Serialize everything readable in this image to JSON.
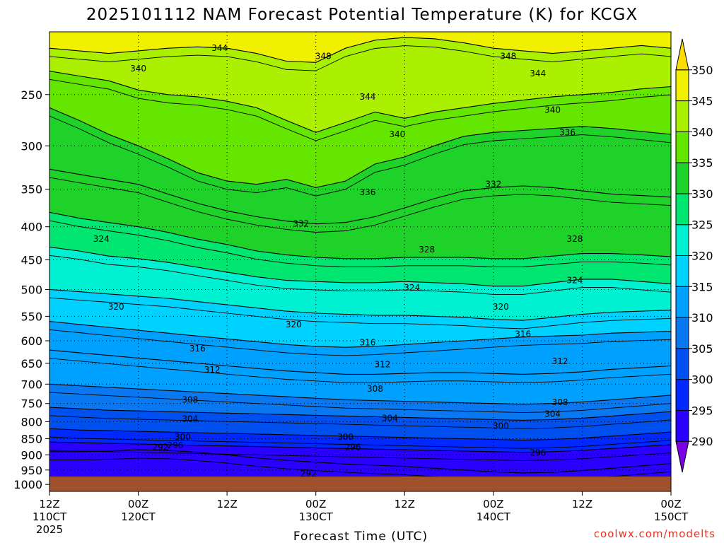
{
  "chart_data": {
    "type": "heatmap",
    "title": "2025101112 NAM Forecast Potential Temperature (K) for KCGX",
    "xlabel": "Forecast Time (UTC)",
    "ylabel": "",
    "x_ticks": [
      {
        "hour": 0,
        "time": "12Z",
        "date": "110CT",
        "year": "2025"
      },
      {
        "hour": 12,
        "time": "00Z",
        "date": "120CT",
        "year": ""
      },
      {
        "hour": 24,
        "time": "12Z",
        "date": "",
        "year": ""
      },
      {
        "hour": 36,
        "time": "00Z",
        "date": "130CT",
        "year": ""
      },
      {
        "hour": 48,
        "time": "12Z",
        "date": "",
        "year": ""
      },
      {
        "hour": 60,
        "time": "00Z",
        "date": "140CT",
        "year": ""
      },
      {
        "hour": 72,
        "time": "12Z",
        "date": "",
        "year": ""
      },
      {
        "hour": 84,
        "time": "00Z",
        "date": "150CT",
        "year": ""
      }
    ],
    "x_range_hours": [
      0,
      84
    ],
    "y_ticks": [
      "250",
      "300",
      "350",
      "400",
      "450",
      "500",
      "550",
      "600",
      "650",
      "700",
      "750",
      "800",
      "850",
      "900",
      "950",
      "1000"
    ],
    "y_range_hpa": [
      200,
      1025
    ],
    "colorbar": {
      "levels": [
        "290",
        "295",
        "300",
        "305",
        "310",
        "315",
        "320",
        "325",
        "330",
        "335",
        "340",
        "345",
        "350"
      ],
      "colors": [
        "#7a00e6",
        "#2a00ff",
        "#0028ff",
        "#0050f0",
        "#0a78f0",
        "#00a0ff",
        "#00d2ff",
        "#00f0d2",
        "#00e670",
        "#1ed22a",
        "#64e600",
        "#aaf000",
        "#f0f000",
        "#ffdc00"
      ]
    },
    "isotherm_bands": [
      {
        "theta": 344,
        "pressure": [
          212,
          214,
          216,
          214,
          212,
          211,
          212,
          216,
          222,
          223,
          212,
          206,
          204,
          205,
          208,
          212,
          214,
          216,
          214,
          212,
          210,
          212
        ]
      },
      {
        "theta": 340,
        "pressure": [
          230,
          234,
          238,
          246,
          250,
          252,
          256,
          262,
          274,
          286,
          276,
          266,
          272,
          266,
          262,
          258,
          255,
          252,
          250,
          248,
          245,
          243
        ]
      },
      {
        "theta": 336,
        "pressure": [
          262,
          274,
          288,
          300,
          314,
          330,
          340,
          344,
          338,
          348,
          340,
          320,
          312,
          300,
          290,
          286,
          284,
          282,
          280,
          282,
          285,
          288
        ]
      },
      {
        "theta": 332,
        "pressure": [
          326,
          332,
          338,
          344,
          356,
          368,
          378,
          386,
          392,
          396,
          394,
          386,
          374,
          362,
          352,
          348,
          346,
          348,
          352,
          356,
          358,
          360
        ]
      },
      {
        "theta": 328,
        "pressure": [
          380,
          388,
          394,
          400,
          408,
          418,
          426,
          436,
          442,
          446,
          448,
          448,
          446,
          446,
          446,
          448,
          448,
          444,
          440,
          440,
          442,
          445
        ]
      },
      {
        "theta": 324,
        "pressure": [
          430,
          436,
          444,
          448,
          454,
          462,
          470,
          478,
          484,
          486,
          488,
          488,
          486,
          488,
          490,
          494,
          494,
          488,
          482,
          482,
          486,
          490
        ]
      },
      {
        "theta": 320,
        "pressure": [
          500,
          504,
          508,
          512,
          516,
          522,
          528,
          534,
          540,
          544,
          546,
          548,
          548,
          550,
          552,
          556,
          558,
          552,
          546,
          542,
          540,
          538
        ]
      },
      {
        "theta": 316,
        "pressure": [
          560,
          566,
          572,
          578,
          584,
          590,
          596,
          602,
          608,
          612,
          614,
          612,
          608,
          604,
          600,
          596,
          592,
          590,
          588,
          584,
          582,
          580
        ]
      },
      {
        "theta": 312,
        "pressure": [
          620,
          626,
          632,
          638,
          644,
          650,
          656,
          662,
          668,
          672,
          676,
          676,
          674,
          672,
          672,
          674,
          676,
          674,
          670,
          664,
          660,
          656
        ]
      },
      {
        "theta": 308,
        "pressure": [
          700,
          704,
          708,
          712,
          716,
          720,
          724,
          728,
          732,
          736,
          740,
          742,
          744,
          746,
          748,
          750,
          752,
          750,
          746,
          740,
          734,
          728
        ]
      },
      {
        "theta": 304,
        "pressure": [
          760,
          764,
          768,
          770,
          772,
          774,
          776,
          778,
          780,
          782,
          784,
          786,
          788,
          790,
          792,
          794,
          796,
          794,
          790,
          784,
          778,
          772
        ]
      },
      {
        "theta": 300,
        "pressure": [
          820,
          824,
          826,
          828,
          830,
          832,
          834,
          836,
          838,
          840,
          842,
          844,
          846,
          848,
          850,
          852,
          854,
          852,
          848,
          842,
          836,
          830
        ]
      },
      {
        "theta": 296,
        "pressure": [
          860,
          862,
          864,
          866,
          868,
          870,
          872,
          874,
          876,
          878,
          880,
          882,
          884,
          886,
          888,
          890,
          892,
          890,
          886,
          880,
          874,
          868
        ]
      },
      {
        "theta": 292,
        "pressure": [
          890,
          890,
          888,
          884,
          886,
          892,
          900,
          910,
          918,
          924,
          930,
          934,
          938,
          944,
          950,
          956,
          960,
          958,
          952,
          944,
          936,
          928
        ]
      }
    ],
    "contour_labels": [
      {
        "text": "344",
        "hour": 23,
        "p": 212
      },
      {
        "text": "348",
        "hour": 37,
        "p": 218
      },
      {
        "text": "348",
        "hour": 62,
        "p": 218
      },
      {
        "text": "340",
        "hour": 12,
        "p": 228
      },
      {
        "text": "344",
        "hour": 66,
        "p": 232
      },
      {
        "text": "344",
        "hour": 43,
        "p": 252
      },
      {
        "text": "340",
        "hour": 68,
        "p": 264
      },
      {
        "text": "340",
        "hour": 47,
        "p": 288
      },
      {
        "text": "336",
        "hour": 70,
        "p": 286
      },
      {
        "text": "332",
        "hour": 60,
        "p": 344
      },
      {
        "text": "336",
        "hour": 43,
        "p": 354
      },
      {
        "text": "332",
        "hour": 34,
        "p": 396
      },
      {
        "text": "324",
        "hour": 7,
        "p": 418
      },
      {
        "text": "328",
        "hour": 71,
        "p": 418
      },
      {
        "text": "328",
        "hour": 51,
        "p": 434
      },
      {
        "text": "324",
        "hour": 71,
        "p": 484
      },
      {
        "text": "324",
        "hour": 49,
        "p": 497
      },
      {
        "text": "320",
        "hour": 9,
        "p": 532
      },
      {
        "text": "320",
        "hour": 61,
        "p": 532
      },
      {
        "text": "320",
        "hour": 33,
        "p": 566
      },
      {
        "text": "316",
        "hour": 64,
        "p": 586
      },
      {
        "text": "316",
        "hour": 43,
        "p": 604
      },
      {
        "text": "316",
        "hour": 20,
        "p": 617
      },
      {
        "text": "312",
        "hour": 45,
        "p": 653
      },
      {
        "text": "312",
        "hour": 69,
        "p": 645
      },
      {
        "text": "312",
        "hour": 22,
        "p": 665
      },
      {
        "text": "308",
        "hour": 44,
        "p": 712
      },
      {
        "text": "308",
        "hour": 19,
        "p": 740
      },
      {
        "text": "308",
        "hour": 69,
        "p": 747
      },
      {
        "text": "304",
        "hour": 68,
        "p": 778
      },
      {
        "text": "304",
        "hour": 46,
        "p": 790
      },
      {
        "text": "304",
        "hour": 19,
        "p": 792
      },
      {
        "text": "300",
        "hour": 61,
        "p": 812
      },
      {
        "text": "300",
        "hour": 18,
        "p": 845
      },
      {
        "text": "300",
        "hour": 40,
        "p": 845
      },
      {
        "text": "296",
        "hour": 17,
        "p": 871
      },
      {
        "text": "292",
        "hour": 15,
        "p": 876
      },
      {
        "text": "296",
        "hour": 41,
        "p": 876
      },
      {
        "text": "296",
        "hour": 66,
        "p": 894
      },
      {
        "text": "292",
        "hour": 35,
        "p": 962
      }
    ]
  },
  "credit": "coolwx.com/modelts"
}
